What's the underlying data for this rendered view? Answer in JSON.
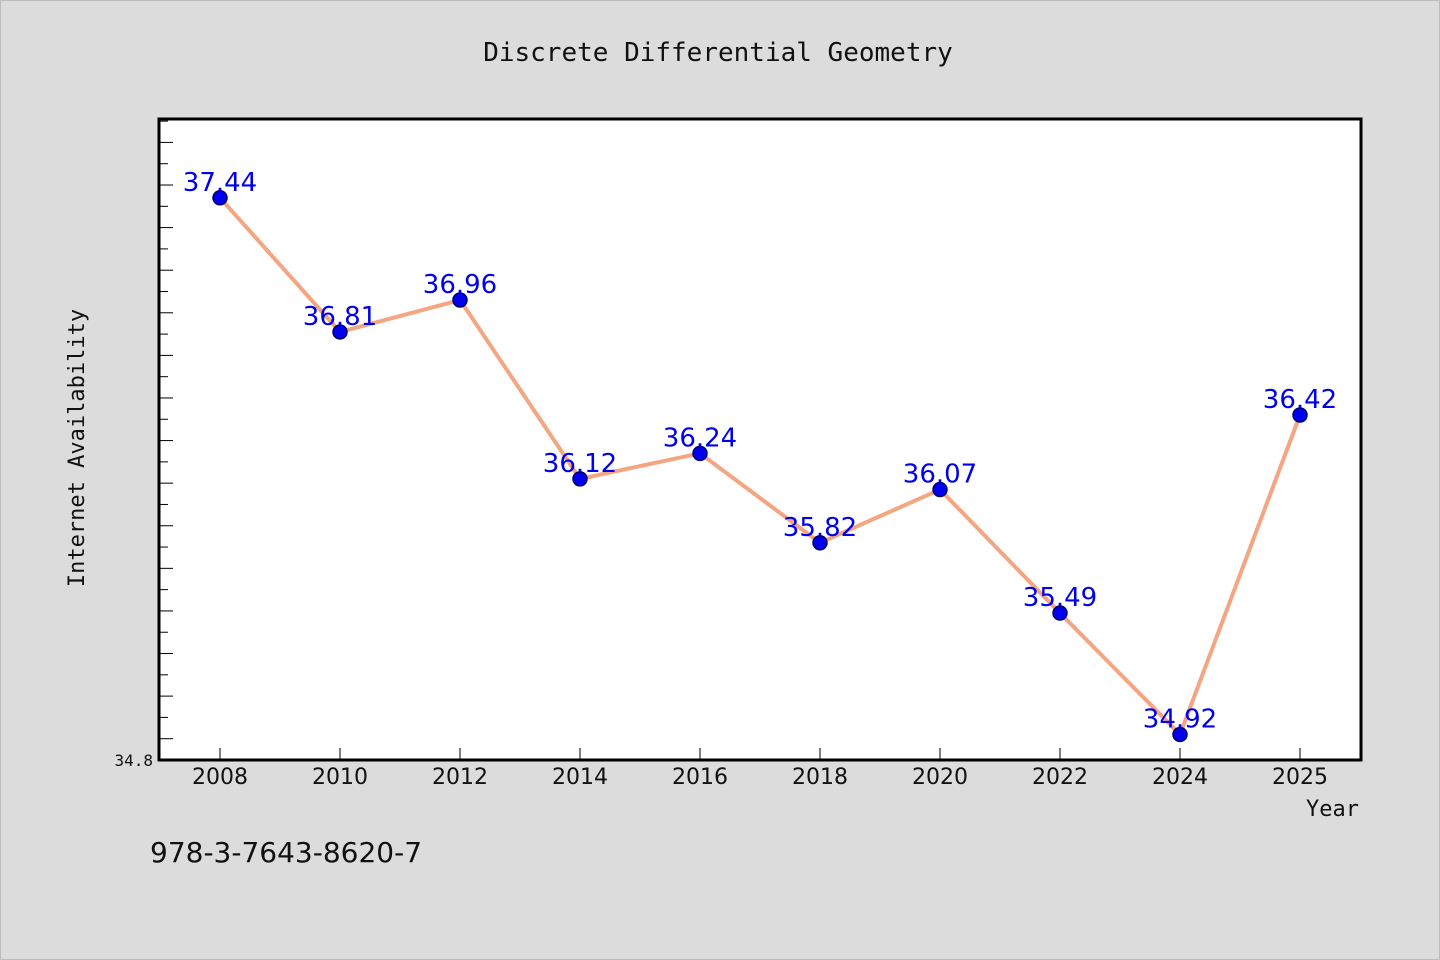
{
  "chart_data": {
    "type": "line",
    "title": "Discrete Differential Geometry",
    "xlabel": "Year",
    "ylabel": "Internet Availability",
    "categories": [
      "2008",
      "2010",
      "2012",
      "2014",
      "2016",
      "2018",
      "2020",
      "2022",
      "2024",
      "2025"
    ],
    "series": [
      {
        "values": [
          37.44,
          36.81,
          36.96,
          36.12,
          36.24,
          35.82,
          36.07,
          35.49,
          34.92,
          36.42
        ],
        "labels": [
          "37.44",
          "36.81",
          "36.96",
          "36.12",
          "36.24",
          "35.82",
          "36.07",
          "35.49",
          "34.92",
          "36.42"
        ]
      }
    ],
    "ylim": [
      34.8,
      37.81
    ],
    "y_min_label": "34.8",
    "grid": false,
    "legend": "none",
    "colors": {
      "line": "#f4a582",
      "marker": "#0000ee",
      "marker_edge": "#00006a",
      "data_label": "#0000ee",
      "axis": "#000000",
      "plot_background": "#ffffff",
      "figure_background": "#dcdcdc"
    }
  },
  "footer": {
    "isbn": "978-3-7643-8620-7"
  }
}
